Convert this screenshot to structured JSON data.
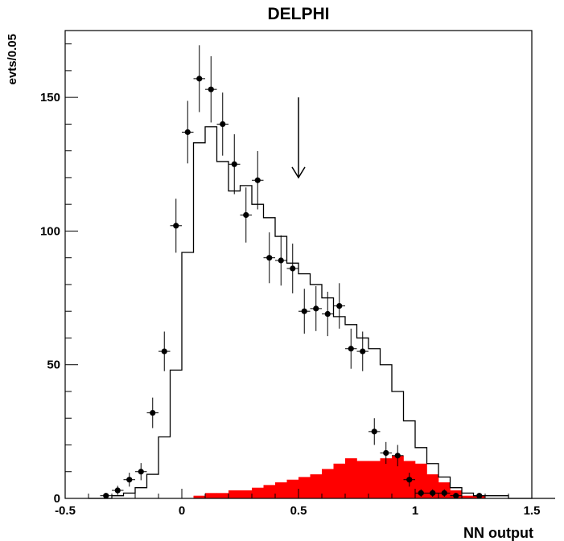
{
  "chart_data": {
    "type": "histogram",
    "title": "DELPHI",
    "xlabel": "NN output",
    "ylabel": "evts/0.05",
    "xlim": [
      -0.5,
      1.5
    ],
    "ylim": [
      0,
      175
    ],
    "x_ticks": [
      -0.5,
      0,
      0.5,
      1,
      1.5
    ],
    "x_tick_labels": [
      "-0.5",
      "0",
      "0.5",
      "1",
      "1.5"
    ],
    "y_ticks": [
      0,
      50,
      100,
      150
    ],
    "y_tick_labels": [
      "0",
      "50",
      "100",
      "150"
    ],
    "grid": false,
    "legend": "none",
    "bin_width": 0.05,
    "bin_edges_start": -0.4,
    "colors": {
      "signal_fill": "#ff0000",
      "line": "#000000"
    },
    "series": [
      {
        "kind": "step_histogram",
        "values": [
          0,
          0,
          1,
          2,
          4,
          9,
          23,
          48,
          92,
          133,
          139,
          126,
          115,
          117,
          110,
          105,
          98,
          88,
          84,
          80,
          75,
          68,
          65,
          60,
          56,
          50,
          40,
          29,
          19,
          13,
          8,
          4,
          2,
          1,
          1,
          1,
          0,
          0,
          0,
          0
        ]
      },
      {
        "kind": "filled_histogram",
        "values": [
          0,
          0,
          0,
          0,
          0,
          0,
          0,
          0,
          0,
          1,
          2,
          2,
          3,
          3,
          4,
          5,
          6,
          7,
          8,
          9,
          11,
          13,
          15,
          14,
          14,
          15,
          16,
          14,
          13,
          9,
          6,
          3,
          1,
          1,
          0,
          0,
          0,
          0,
          0,
          0
        ]
      },
      {
        "kind": "points_with_errors",
        "x": [
          -0.325,
          -0.275,
          -0.225,
          -0.175,
          -0.125,
          -0.075,
          -0.025,
          0.025,
          0.075,
          0.125,
          0.175,
          0.225,
          0.275,
          0.325,
          0.375,
          0.425,
          0.475,
          0.525,
          0.575,
          0.625,
          0.675,
          0.725,
          0.775,
          0.825,
          0.875,
          0.925,
          0.975,
          1.025,
          1.075,
          1.125,
          1.175,
          1.275
        ],
        "y": [
          1,
          3,
          7,
          10,
          32,
          55,
          102,
          137,
          157,
          153,
          140,
          125,
          106,
          119,
          90,
          89,
          86,
          70,
          71,
          69,
          72,
          56,
          55,
          25,
          17,
          16,
          7,
          2,
          2,
          2,
          1,
          1
        ],
        "yerr": [
          1,
          1.7,
          2.6,
          3.2,
          5.7,
          7.4,
          10.1,
          11.7,
          12.5,
          12.4,
          11.8,
          11.2,
          10.3,
          10.9,
          9.5,
          9.4,
          9.3,
          8.4,
          8.4,
          8.3,
          8.5,
          7.5,
          7.4,
          5,
          4.1,
          4,
          2.6,
          1.4,
          1.4,
          1.4,
          1,
          1
        ]
      }
    ],
    "annotations": [
      {
        "kind": "arrow_down",
        "x": 0.5,
        "y_from": 150,
        "y_to": 120
      }
    ]
  }
}
